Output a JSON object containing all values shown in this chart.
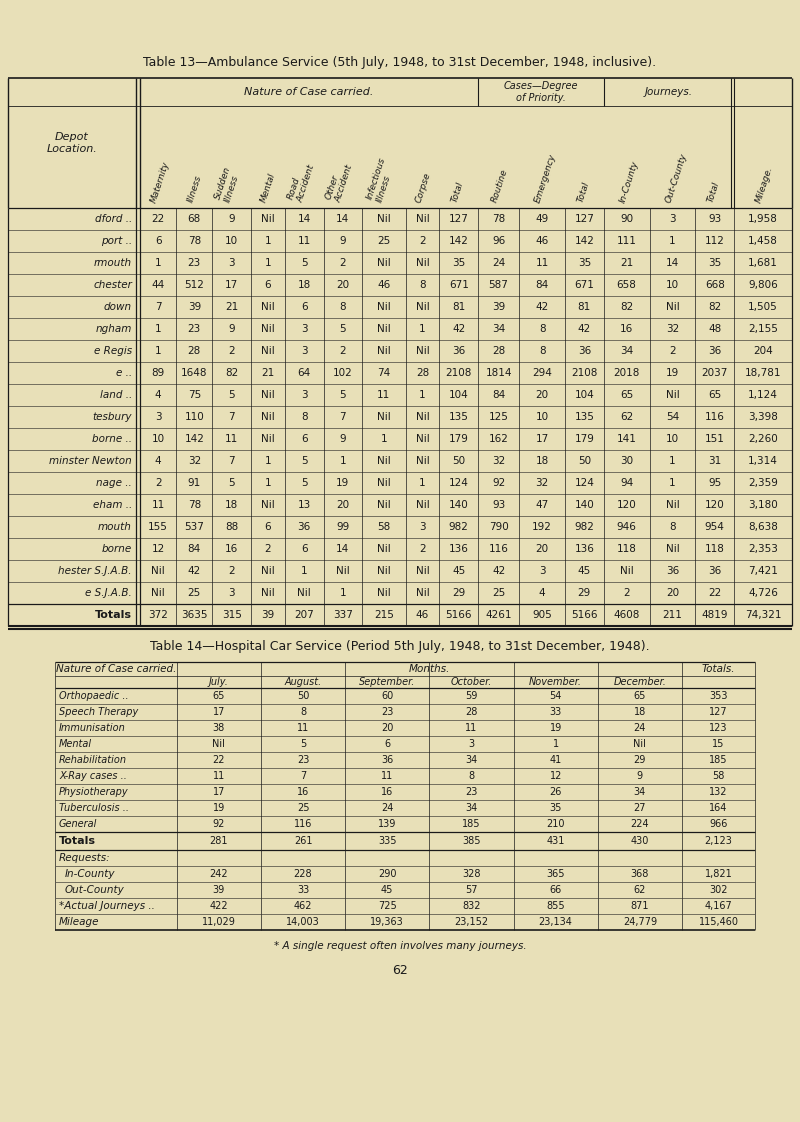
{
  "title13": "Table 13—Ambulance Service (5th July, 1948, to 31st December, 1948, inclusive).",
  "title14": "Table 14—Hospital Car Service (Period 5th July, 1948, to 31st December, 1948).",
  "bg_color": "#e8e0b8",
  "text_color": "#1a1a1a",
  "table13_subheaders": [
    "Maternity",
    "Illness",
    "Sudden\nIllness",
    "Mental",
    "Road\nAccident",
    "Other\nAccident",
    "Infectious\nIllness",
    "Corpse",
    "Total",
    "Routine",
    "Emergency",
    "Total",
    "In-County",
    "Out-County",
    "Total",
    "Mileage."
  ],
  "table13_depots": [
    "dford ..",
    "port ..",
    "rmouth",
    "chester",
    "down",
    "ngham",
    "e Regis",
    "e ..",
    "land ..",
    "tesbury",
    "borne ..",
    "minster Newton",
    "nage ..",
    "eham ..",
    "mouth",
    "borne",
    "hester S.J.A.B.",
    "e S.J.A.B.",
    "Totals"
  ],
  "table13_data": [
    [
      22,
      68,
      9,
      "Nil",
      14,
      14,
      "Nil",
      "Nil",
      127,
      78,
      49,
      127,
      90,
      3,
      93,
      "1,958"
    ],
    [
      6,
      78,
      10,
      1,
      11,
      9,
      25,
      2,
      142,
      96,
      46,
      142,
      111,
      1,
      112,
      "1,458"
    ],
    [
      1,
      23,
      3,
      1,
      5,
      2,
      "Nil",
      "Nil",
      35,
      24,
      11,
      35,
      21,
      14,
      35,
      "1,681"
    ],
    [
      44,
      512,
      17,
      6,
      18,
      20,
      46,
      8,
      671,
      587,
      84,
      671,
      658,
      10,
      668,
      "9,806"
    ],
    [
      7,
      39,
      21,
      "Nil",
      6,
      8,
      "Nil",
      "Nil",
      81,
      39,
      42,
      81,
      82,
      "Nil",
      82,
      "1,505"
    ],
    [
      1,
      23,
      9,
      "Nil",
      3,
      5,
      "Nil",
      1,
      42,
      34,
      8,
      42,
      16,
      32,
      48,
      "2,155"
    ],
    [
      1,
      28,
      2,
      "Nil",
      3,
      2,
      "Nil",
      "Nil",
      36,
      28,
      8,
      36,
      34,
      2,
      36,
      204
    ],
    [
      89,
      1648,
      82,
      21,
      64,
      102,
      74,
      28,
      2108,
      1814,
      294,
      2108,
      2018,
      19,
      2037,
      "18,781"
    ],
    [
      4,
      75,
      5,
      "Nil",
      3,
      5,
      11,
      1,
      104,
      84,
      20,
      104,
      65,
      "Nil",
      65,
      "1,124"
    ],
    [
      3,
      110,
      7,
      "Nil",
      8,
      7,
      "Nil",
      "Nil",
      135,
      125,
      10,
      135,
      62,
      54,
      116,
      "3,398"
    ],
    [
      10,
      142,
      11,
      "Nil",
      6,
      9,
      1,
      "Nil",
      179,
      162,
      17,
      179,
      141,
      10,
      151,
      "2,260"
    ],
    [
      4,
      32,
      7,
      1,
      5,
      1,
      "Nil",
      "Nil",
      50,
      32,
      18,
      50,
      30,
      1,
      31,
      "1,314"
    ],
    [
      2,
      91,
      5,
      1,
      5,
      19,
      "Nil",
      1,
      124,
      92,
      32,
      124,
      94,
      1,
      95,
      "2,359"
    ],
    [
      11,
      78,
      18,
      "Nil",
      13,
      20,
      "Nil",
      "Nil",
      140,
      93,
      47,
      140,
      120,
      "Nil",
      120,
      "3,180"
    ],
    [
      155,
      537,
      88,
      6,
      36,
      99,
      58,
      3,
      982,
      790,
      192,
      982,
      946,
      8,
      954,
      "8,638"
    ],
    [
      12,
      84,
      16,
      2,
      6,
      14,
      "Nil",
      2,
      136,
      116,
      20,
      136,
      118,
      "Nil",
      118,
      "2,353"
    ],
    [
      "Nil",
      42,
      2,
      "Nil",
      1,
      "Nil",
      "Nil",
      "Nil",
      45,
      42,
      3,
      45,
      "Nil",
      36,
      36,
      "7,421"
    ],
    [
      "Nil",
      25,
      3,
      "Nil",
      "Nil",
      1,
      "Nil",
      "Nil",
      29,
      25,
      4,
      29,
      2,
      20,
      22,
      "4,726"
    ],
    [
      372,
      3635,
      315,
      39,
      207,
      337,
      215,
      46,
      5166,
      4261,
      905,
      5166,
      4608,
      211,
      4819,
      "74,321"
    ]
  ],
  "table14_month_headers": [
    "July.",
    "August.",
    "September.",
    "October.",
    "November.",
    "December."
  ],
  "table14_categories": [
    "Orthopaedic ..",
    "Speech Therapy",
    "Immunisation",
    "Mental",
    "Rehabilitation",
    "X-Ray cases ..",
    "Physiotherapy",
    "Tuberculosis ..",
    "General"
  ],
  "table14_data": [
    [
      65,
      50,
      60,
      59,
      54,
      65,
      353
    ],
    [
      17,
      8,
      23,
      28,
      33,
      18,
      127
    ],
    [
      38,
      11,
      20,
      11,
      19,
      24,
      123
    ],
    [
      "Nil",
      5,
      6,
      3,
      1,
      "Nil",
      15
    ],
    [
      22,
      23,
      36,
      34,
      41,
      29,
      185
    ],
    [
      11,
      7,
      11,
      8,
      12,
      9,
      58
    ],
    [
      17,
      16,
      16,
      23,
      26,
      34,
      132
    ],
    [
      19,
      25,
      24,
      34,
      35,
      27,
      164
    ],
    [
      92,
      116,
      139,
      185,
      210,
      224,
      966
    ]
  ],
  "table14_totals": [
    281,
    261,
    335,
    385,
    431,
    430,
    "2,123"
  ],
  "table14_requests_incounty": [
    242,
    228,
    290,
    328,
    365,
    368,
    "1,821"
  ],
  "table14_requests_outcounty": [
    39,
    33,
    45,
    57,
    66,
    62,
    302
  ],
  "table14_actual_journeys": [
    422,
    462,
    725,
    832,
    855,
    871,
    "4,167"
  ],
  "table14_mileage": [
    "11,029",
    "14,003",
    "19,363",
    "23,152",
    "23,134",
    "24,779",
    "115,460"
  ],
  "footnote": "* A single request often involves many journeys.",
  "page_number": "62"
}
